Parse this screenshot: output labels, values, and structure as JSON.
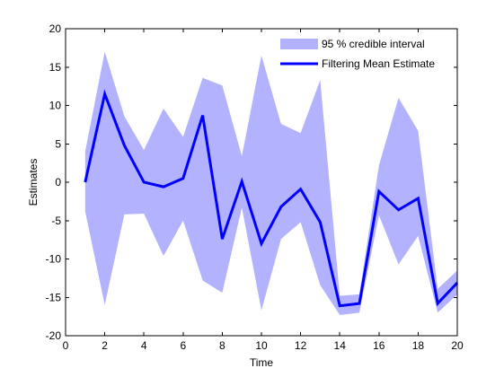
{
  "chart_data": {
    "type": "line",
    "xlabel": "Time",
    "ylabel": "Estimates",
    "xlim": [
      0,
      20
    ],
    "ylim": [
      -20,
      20
    ],
    "xticks": [
      0,
      2,
      4,
      6,
      8,
      10,
      12,
      14,
      16,
      18,
      20
    ],
    "yticks": [
      -20,
      -15,
      -10,
      -5,
      0,
      5,
      10,
      15,
      20
    ],
    "grid": false,
    "legend_position": "top-right",
    "x": [
      1,
      2,
      3,
      4,
      5,
      6,
      7,
      8,
      9,
      10,
      11,
      12,
      13,
      14,
      15,
      16,
      17,
      18,
      19,
      20
    ],
    "series": [
      {
        "name": "95 % credible interval",
        "kind": "band",
        "color": "#b2b2ff",
        "upper": [
          4.0,
          17.0,
          8.6,
          4.2,
          9.6,
          5.9,
          13.6,
          12.6,
          3.4,
          16.5,
          7.6,
          6.4,
          13.3,
          -14.8,
          -14.6,
          2.2,
          11.0,
          6.7,
          -13.9,
          -11.5
        ],
        "lower": [
          -3.8,
          -16.0,
          -4.2,
          -4.1,
          -9.6,
          -5.0,
          -12.8,
          -14.4,
          -3.3,
          -16.7,
          -7.4,
          -5.2,
          -13.4,
          -17.3,
          -17.0,
          -4.3,
          -10.7,
          -7.0,
          -17.0,
          -14.6
        ]
      },
      {
        "name": "Filtering Mean Estimate",
        "kind": "line",
        "color": "#0000ff",
        "values": [
          0.0,
          11.5,
          4.8,
          0.0,
          -0.6,
          0.5,
          8.7,
          -7.4,
          0.1,
          -8.0,
          -3.2,
          -0.9,
          -5.2,
          -16.1,
          -15.8,
          -1.2,
          -3.6,
          -2.1,
          -15.8,
          -13.1
        ]
      }
    ]
  }
}
